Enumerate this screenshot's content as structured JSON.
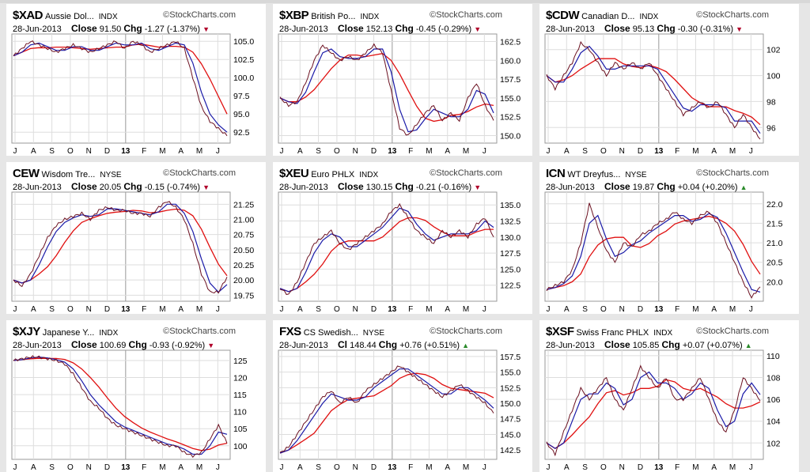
{
  "watermark": "©StockCharts.com",
  "months": [
    "J",
    "A",
    "S",
    "O",
    "N",
    "D",
    "13",
    "F",
    "M",
    "A",
    "M",
    "J"
  ],
  "panels": [
    {
      "symbol": "$XAD",
      "name": "Aussie Dol...",
      "exchange": "INDX",
      "date": "28-Jun-2013",
      "close_label": "Close",
      "close": "91.50",
      "chg_label": "Chg",
      "chg": "-1.27 (-1.37%)",
      "dir": "down"
    },
    {
      "symbol": "$XBP",
      "name": "British Po...",
      "exchange": "INDX",
      "date": "28-Jun-2013",
      "close_label": "Close",
      "close": "152.13",
      "chg_label": "Chg",
      "chg": "-0.45 (-0.29%)",
      "dir": "down"
    },
    {
      "symbol": "$CDW",
      "name": "Canadian D...",
      "exchange": "INDX",
      "date": "28-Jun-2013",
      "close_label": "Close",
      "close": "95.13",
      "chg_label": "Chg",
      "chg": "-0.30 (-0.31%)",
      "dir": "down"
    },
    {
      "symbol": "CEW",
      "name": "Wisdom Tre...",
      "exchange": "NYSE",
      "date": "28-Jun-2013",
      "close_label": "Close",
      "close": "20.05",
      "chg_label": "Chg",
      "chg": "-0.15 (-0.74%)",
      "dir": "down"
    },
    {
      "symbol": "$XEU",
      "name": "Euro PHLX",
      "exchange": "INDX",
      "date": "28-Jun-2013",
      "close_label": "Close",
      "close": "130.15",
      "chg_label": "Chg",
      "chg": "-0.21 (-0.16%)",
      "dir": "down"
    },
    {
      "symbol": "ICN",
      "name": "WT Dreyfus...",
      "exchange": "NYSE",
      "date": "28-Jun-2013",
      "close_label": "Close",
      "close": "19.87",
      "chg_label": "Chg",
      "chg": "+0.04 (+0.20%)",
      "dir": "up"
    },
    {
      "symbol": "$XJY",
      "name": "Japanese Y...",
      "exchange": "INDX",
      "date": "28-Jun-2013",
      "close_label": "Close",
      "close": "100.69",
      "chg_label": "Chg",
      "chg": "-0.93 (-0.92%)",
      "dir": "down"
    },
    {
      "symbol": "FXS",
      "name": "CS Swedish...",
      "exchange": "NYSE",
      "date": "28-Jun-2013",
      "close_label": "Cl",
      "close": "148.44",
      "chg_label": "Chg",
      "chg": "+0.76 (+0.51%)",
      "dir": "up"
    },
    {
      "symbol": "$XSF",
      "name": "Swiss Franc PHLX",
      "exchange": "INDX",
      "date": "28-Jun-2013",
      "close_label": "Close",
      "close": "105.85",
      "chg_label": "Chg",
      "chg": "+0.07 (+0.07%)",
      "dir": "up"
    }
  ],
  "colors": {
    "price": "#6b1020",
    "ma_short": "#1a1aa8",
    "ma_long": "#e01010",
    "up": "#2a8a2a",
    "down": "#b0002a"
  },
  "chart_data": [
    {
      "type": "line",
      "title": "$XAD",
      "ylim": [
        91,
        106
      ],
      "yticks": [
        "92.5",
        "95.0",
        "97.5",
        "100.0",
        "102.5",
        "105.0"
      ],
      "ytick_values": [
        92.5,
        95,
        97.5,
        100,
        102.5,
        105
      ],
      "values": [
        103,
        104,
        105,
        104.5,
        104,
        103.5,
        104,
        104.5,
        104,
        103.5,
        104,
        104.5,
        105,
        104,
        105,
        104.5,
        103.5,
        104,
        104.5,
        105,
        104,
        100,
        96,
        94,
        93,
        92
      ]
    },
    {
      "type": "line",
      "title": "$XBP",
      "ylim": [
        149,
        163.5
      ],
      "yticks": [
        "150.0",
        "152.5",
        "155.0",
        "157.5",
        "160.0",
        "162.5"
      ],
      "ytick_values": [
        150,
        152.5,
        155,
        157.5,
        160,
        162.5
      ],
      "values": [
        155,
        154,
        154.5,
        157,
        160,
        162,
        161,
        160,
        160.5,
        160,
        161,
        162,
        161,
        156,
        151,
        150,
        151.5,
        153,
        154,
        152,
        153,
        152,
        155,
        157,
        154,
        152
      ]
    },
    {
      "type": "line",
      "title": "$CDW",
      "ylim": [
        94.8,
        103.2
      ],
      "yticks": [
        "96",
        "98",
        "100",
        "102"
      ],
      "ytick_values": [
        96,
        98,
        100,
        102
      ],
      "values": [
        100,
        99,
        100,
        101,
        102.5,
        102,
        101,
        100,
        101,
        100.5,
        101,
        100.5,
        101,
        100,
        99,
        98,
        97,
        97.5,
        98,
        97.5,
        98,
        97,
        96,
        97,
        96,
        95.1
      ]
    },
    {
      "type": "line",
      "title": "CEW",
      "ylim": [
        19.65,
        21.45
      ],
      "yticks": [
        "19.75",
        "20.00",
        "20.25",
        "20.50",
        "20.75",
        "21.00",
        "21.25"
      ],
      "ytick_values": [
        19.75,
        20,
        20.25,
        20.5,
        20.75,
        21,
        21.25
      ],
      "values": [
        20.0,
        19.9,
        20.1,
        20.4,
        20.7,
        20.9,
        21.0,
        21.05,
        21.1,
        21.0,
        21.15,
        21.2,
        21.15,
        21.15,
        21.1,
        21.1,
        21.05,
        21.2,
        21.3,
        21.2,
        21.0,
        20.6,
        20.1,
        19.8,
        19.8,
        20.05
      ]
    },
    {
      "type": "line",
      "title": "$XEU",
      "ylim": [
        120,
        137
      ],
      "yticks": [
        "122.5",
        "125.0",
        "127.5",
        "130.0",
        "132.5",
        "135.0"
      ],
      "ytick_values": [
        122.5,
        125,
        127.5,
        130,
        132.5,
        135
      ],
      "values": [
        122,
        121,
        123,
        126,
        129,
        130,
        131,
        129,
        128,
        129,
        130,
        131,
        132,
        134,
        135,
        133,
        131,
        130,
        129,
        131,
        130,
        131,
        130,
        132,
        133,
        130
      ]
    },
    {
      "type": "line",
      "title": "ICN",
      "ylim": [
        19.5,
        22.3
      ],
      "yticks": [
        "20.0",
        "20.5",
        "21.0",
        "21.5",
        "22.0"
      ],
      "ytick_values": [
        20,
        20.5,
        21,
        21.5,
        22
      ],
      "values": [
        19.8,
        19.9,
        20.0,
        20.3,
        21.0,
        22.0,
        21.4,
        20.8,
        20.5,
        21.0,
        20.9,
        21.2,
        21.3,
        21.5,
        21.6,
        21.8,
        21.6,
        21.5,
        21.7,
        21.8,
        21.5,
        21.0,
        20.5,
        20.0,
        19.6,
        19.87
      ]
    },
    {
      "type": "line",
      "title": "$XJY",
      "ylim": [
        96,
        128
      ],
      "yticks": [
        "100",
        "105",
        "110",
        "115",
        "120",
        "125"
      ],
      "ytick_values": [
        100,
        105,
        110,
        115,
        120,
        125
      ],
      "values": [
        125,
        125.5,
        126,
        126,
        125.5,
        125,
        124,
        121,
        117,
        113,
        111,
        108,
        106,
        105,
        104,
        103,
        102,
        101,
        100,
        100,
        98,
        97,
        98,
        102,
        106,
        100.7
      ]
    },
    {
      "type": "line",
      "title": "FXS",
      "ylim": [
        141,
        158.5
      ],
      "yticks": [
        "142.5",
        "145.0",
        "147.5",
        "150.0",
        "152.5",
        "155.0",
        "157.5"
      ],
      "ytick_values": [
        142.5,
        145,
        147.5,
        150,
        152.5,
        155,
        157.5
      ],
      "values": [
        142,
        143,
        145,
        147,
        149,
        151,
        152,
        150,
        151,
        150,
        152,
        153,
        154,
        155,
        156,
        155,
        154,
        153,
        152,
        151,
        152,
        153,
        152,
        151,
        150,
        148.4
      ]
    },
    {
      "type": "line",
      "title": "$XSF",
      "ylim": [
        100.5,
        110.5
      ],
      "yticks": [
        "102",
        "104",
        "106",
        "108",
        "110"
      ],
      "ytick_values": [
        102,
        104,
        106,
        108,
        110
      ],
      "values": [
        102,
        101,
        103,
        105,
        107,
        106,
        107,
        108,
        106,
        105,
        107,
        109,
        108,
        107,
        108,
        106,
        106,
        107,
        108,
        106,
        104,
        103,
        105,
        108,
        107,
        105.85
      ]
    }
  ]
}
